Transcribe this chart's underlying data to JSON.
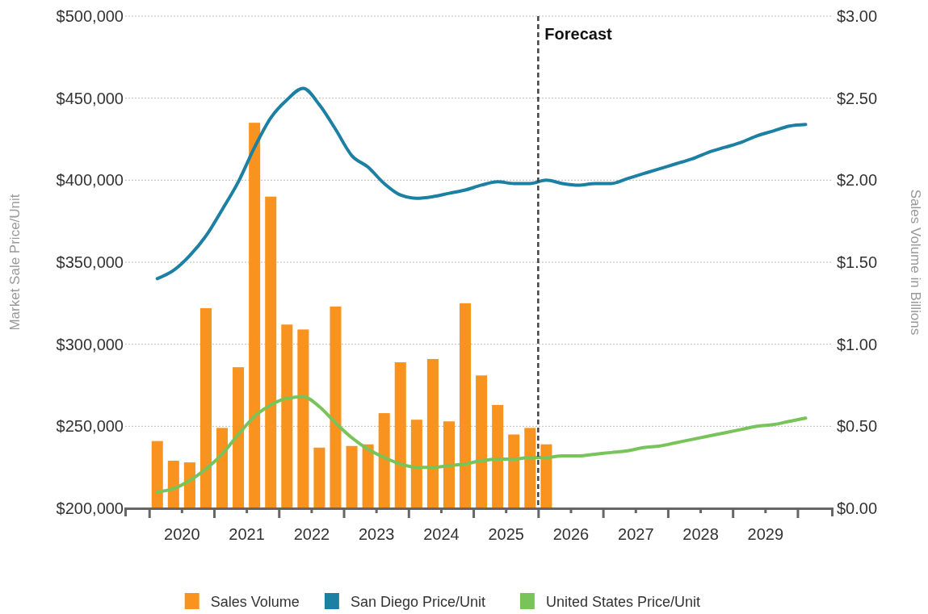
{
  "chart_data": {
    "type": "bar",
    "ylabel": "Market Sale Price/Unit",
    "y2label": "Sales Volume in Billions",
    "xlim": [
      2019.63,
      2030.53
    ],
    "xticks": [
      {
        "value": 2020,
        "label": null
      },
      {
        "value": 2020.5,
        "label": "2020"
      },
      {
        "value": 2021,
        "label": null
      },
      {
        "value": 2021.5,
        "label": "2021"
      },
      {
        "value": 2022,
        "label": null
      },
      {
        "value": 2022.5,
        "label": "2022"
      },
      {
        "value": 2023,
        "label": null
      },
      {
        "value": 2023.5,
        "label": "2023"
      },
      {
        "value": 2024,
        "label": null
      },
      {
        "value": 2024.5,
        "label": "2024"
      },
      {
        "value": 2025,
        "label": null
      },
      {
        "value": 2025.5,
        "label": "2025"
      },
      {
        "value": 2026,
        "label": null
      },
      {
        "value": 2026.5,
        "label": "2026"
      },
      {
        "value": 2027,
        "label": null
      },
      {
        "value": 2027.5,
        "label": "2027"
      },
      {
        "value": 2028,
        "label": null
      },
      {
        "value": 2028.5,
        "label": "2028"
      },
      {
        "value": 2029,
        "label": null
      },
      {
        "value": 2029.5,
        "label": "2029"
      },
      {
        "value": 2030,
        "label": null
      }
    ],
    "ylim": [
      200000,
      500000
    ],
    "yticks": [
      {
        "value": 200000,
        "label": "$200,000"
      },
      {
        "value": 250000,
        "label": "$250,000"
      },
      {
        "value": 300000,
        "label": "$300,000"
      },
      {
        "value": 350000,
        "label": "$350,000"
      },
      {
        "value": 400000,
        "label": "$400,000"
      },
      {
        "value": 450000,
        "label": "$450,000"
      },
      {
        "value": 500000,
        "label": "$500,000"
      }
    ],
    "y2lim": [
      0,
      3
    ],
    "y2ticks": [
      {
        "value": 0,
        "label": "$0.00"
      },
      {
        "value": 0.5,
        "label": "$0.50"
      },
      {
        "value": 1,
        "label": "$1.00"
      },
      {
        "value": 1.5,
        "label": "$1.50"
      },
      {
        "value": 2,
        "label": "$2.00"
      },
      {
        "value": 2.5,
        "label": "$2.50"
      },
      {
        "value": 3,
        "label": "$3.00"
      }
    ],
    "grid": "y",
    "legend": "bottom",
    "ref_lines": [
      {
        "axis": "x",
        "value": 2026,
        "label": "Forecast",
        "color": "#444444",
        "line_style": "dashed"
      }
    ],
    "series": [
      {
        "name": "Sales Volume",
        "type": "bar",
        "axis": "y2",
        "color": "#f7931e",
        "x": [
          2020.125,
          2020.375,
          2020.625,
          2020.875,
          2021.125,
          2021.375,
          2021.625,
          2021.875,
          2022.125,
          2022.375,
          2022.625,
          2022.875,
          2023.125,
          2023.375,
          2023.625,
          2023.875,
          2024.125,
          2024.375,
          2024.625,
          2024.875,
          2025.125,
          2025.375,
          2025.625,
          2025.875,
          2026.125
        ],
        "values": [
          0.41,
          0.29,
          0.28,
          1.22,
          0.49,
          0.86,
          2.35,
          1.9,
          1.12,
          1.09,
          0.37,
          1.23,
          0.38,
          0.39,
          0.58,
          0.89,
          0.54,
          0.91,
          0.53,
          1.25,
          0.81,
          0.63,
          0.45,
          0.49,
          0.39
        ]
      },
      {
        "name": "San Diego Price/Unit",
        "type": "line",
        "color": "#1b80a3",
        "x": [
          2020.125,
          2020.375,
          2020.625,
          2020.875,
          2021.125,
          2021.375,
          2021.625,
          2021.875,
          2022.125,
          2022.375,
          2022.625,
          2022.875,
          2023.125,
          2023.375,
          2023.625,
          2023.875,
          2024.125,
          2024.375,
          2024.625,
          2024.875,
          2025.125,
          2025.375,
          2025.625,
          2025.875,
          2026.125,
          2026.375,
          2026.625,
          2026.875,
          2027.125,
          2027.375,
          2027.625,
          2027.875,
          2028.125,
          2028.375,
          2028.625,
          2028.875,
          2029.125,
          2029.375,
          2029.625,
          2029.875,
          2030.125
        ],
        "values": [
          340000,
          345000,
          354000,
          366000,
          382000,
          399000,
          420000,
          438000,
          449000,
          456000,
          446000,
          431000,
          415000,
          408000,
          398000,
          391000,
          389000,
          390000,
          392000,
          394000,
          397000,
          399000,
          398000,
          398000,
          400000,
          398000,
          397000,
          398000,
          398000,
          401000,
          404000,
          407000,
          410000,
          413000,
          417000,
          420000,
          423000,
          427000,
          430000,
          433000,
          434000
        ]
      },
      {
        "name": "United States Price/Unit",
        "type": "line",
        "color": "#79c35b",
        "x": [
          2020.125,
          2020.375,
          2020.625,
          2020.875,
          2021.125,
          2021.375,
          2021.625,
          2021.875,
          2022.125,
          2022.375,
          2022.625,
          2022.875,
          2023.125,
          2023.375,
          2023.625,
          2023.875,
          2024.125,
          2024.375,
          2024.625,
          2024.875,
          2025.125,
          2025.375,
          2025.625,
          2025.875,
          2026.125,
          2026.375,
          2026.625,
          2026.875,
          2027.125,
          2027.375,
          2027.625,
          2027.875,
          2028.125,
          2028.375,
          2028.625,
          2028.875,
          2029.125,
          2029.375,
          2029.625,
          2029.875,
          2030.125
        ],
        "values": [
          210000,
          212000,
          217000,
          224000,
          233000,
          245000,
          256000,
          263000,
          267000,
          268000,
          262000,
          252000,
          243000,
          236000,
          231000,
          227000,
          225000,
          225000,
          226000,
          227000,
          229000,
          230000,
          230000,
          231000,
          231000,
          232000,
          232000,
          233000,
          234000,
          235000,
          237000,
          238000,
          240000,
          242000,
          244000,
          246000,
          248000,
          250000,
          251000,
          253000,
          255000
        ]
      }
    ]
  }
}
